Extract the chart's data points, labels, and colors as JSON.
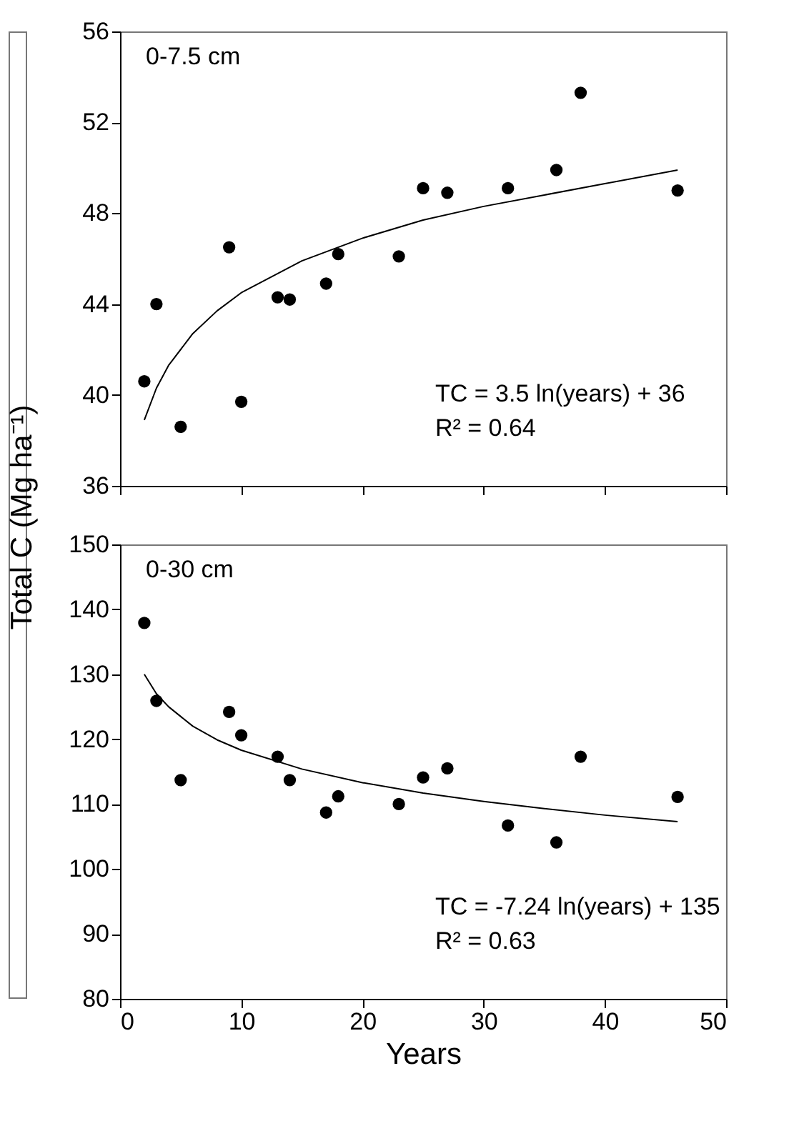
{
  "chart_data": [
    {
      "type": "scatter",
      "ylabel": "Total C (Mg ha⁻¹)",
      "xlim": [
        0,
        50
      ],
      "xticks": [
        0,
        10,
        20,
        30,
        40,
        50
      ],
      "ylim": [
        36,
        56
      ],
      "yticks": [
        36,
        40,
        44,
        48,
        52,
        56
      ],
      "tick_labels": "y",
      "grid": false,
      "annotations": [
        "0-7.5 cm",
        "TC  = 3.5 ln(years) + 36",
        "R² = 0.64"
      ],
      "series": [
        {
          "marker": "circle",
          "color": "#000000",
          "x": [
            2,
            3,
            5,
            9,
            10,
            13,
            14,
            17,
            18,
            23,
            25,
            27,
            32,
            36,
            38,
            46
          ],
          "values": [
            40.6,
            44.0,
            38.6,
            46.5,
            39.7,
            44.3,
            44.2,
            44.9,
            46.2,
            46.1,
            49.1,
            48.9,
            49.1,
            49.9,
            53.3,
            49.0
          ]
        },
        {
          "type": "line",
          "color": "#000000",
          "x": [
            2,
            3,
            4,
            6,
            8,
            10,
            15,
            20,
            25,
            30,
            35,
            40,
            46
          ],
          "values": [
            38.9,
            40.3,
            41.3,
            42.7,
            43.7,
            44.5,
            45.9,
            46.9,
            47.7,
            48.3,
            48.8,
            49.3,
            49.9
          ]
        }
      ]
    },
    {
      "type": "scatter",
      "xlabel": "Years",
      "xlim": [
        0,
        50
      ],
      "xticks": [
        0,
        10,
        20,
        30,
        40,
        50
      ],
      "ylim": [
        80,
        150
      ],
      "yticks": [
        80,
        90,
        100,
        110,
        120,
        130,
        140,
        150
      ],
      "grid": false,
      "annotations": [
        "0-30 cm",
        "TC  = -7.24 ln(years) + 135",
        "R² = 0.63"
      ],
      "series": [
        {
          "marker": "circle",
          "color": "#000000",
          "x": [
            2,
            3,
            5,
            9,
            10,
            13,
            14,
            17,
            18,
            23,
            25,
            27,
            32,
            36,
            38,
            46
          ],
          "values": [
            137.9,
            125.9,
            113.7,
            124.2,
            120.6,
            117.3,
            113.7,
            108.7,
            111.2,
            110.0,
            114.1,
            115.5,
            106.7,
            104.1,
            117.3,
            111.1
          ]
        },
        {
          "type": "line",
          "color": "#000000",
          "x": [
            2,
            3,
            4,
            6,
            8,
            10,
            15,
            20,
            25,
            30,
            35,
            40,
            46
          ],
          "values": [
            130.0,
            127.0,
            125.0,
            122.0,
            119.9,
            118.3,
            115.4,
            113.3,
            111.7,
            110.4,
            109.3,
            108.3,
            107.3
          ]
        }
      ]
    }
  ]
}
